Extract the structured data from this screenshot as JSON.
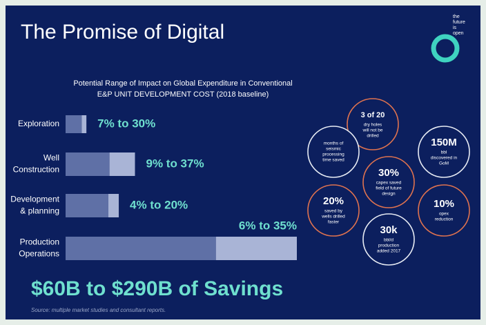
{
  "header": {
    "title": "The Promise of Digital",
    "logo_lines": [
      "the",
      "future",
      "is",
      "open"
    ]
  },
  "chart_data": {
    "type": "range-bar",
    "title": [
      "Potential Range of Impact on Global Expenditure in Conventional",
      "E&P UNIT DEVELOPMENT COST  (2018 baseline)"
    ],
    "categories": [
      [
        "Exploration"
      ],
      [
        "Well",
        "Construction"
      ],
      [
        "Development",
        "& planning"
      ],
      [
        "Production",
        "Operations"
      ]
    ],
    "low": [
      7,
      19,
      18.5,
      65
    ],
    "high": [
      9,
      30,
      23,
      100
    ],
    "range_labels": [
      "7% to 30%",
      "9% to 37%",
      "4% to 20%",
      "6% to 35%"
    ],
    "xlim": [
      0,
      100
    ],
    "colors": {
      "low": "#5f70a6",
      "high": "#a9b4d6",
      "label": "#6fe0cf"
    }
  },
  "highlights": [
    {
      "headline": "3 of 20",
      "lines": [
        "dry holes",
        "will not be",
        "drilled"
      ],
      "ring": "orange"
    },
    {
      "headline": "",
      "lines": [
        "months of",
        "seismic",
        "processing",
        "time saved"
      ],
      "ring": "white"
    },
    {
      "headline": "150M",
      "lines": [
        "bbl",
        "discovered in",
        "GoM"
      ],
      "ring": "white"
    },
    {
      "headline": "30%",
      "lines": [
        "capex saved",
        "field of future",
        "design"
      ],
      "ring": "orange"
    },
    {
      "headline": "20%",
      "lines": [
        "saved by",
        "wells drilled",
        "faster"
      ],
      "ring": "orange"
    },
    {
      "headline": "10%",
      "lines": [
        "opex",
        "reduction"
      ],
      "ring": "orange"
    },
    {
      "headline": "30k",
      "lines": [
        "bbl/d",
        "production",
        "added 2017"
      ],
      "ring": "white"
    }
  ],
  "summary": "$60B to $290B of Savings",
  "source": "Source: multiple market studies and consultant reports."
}
